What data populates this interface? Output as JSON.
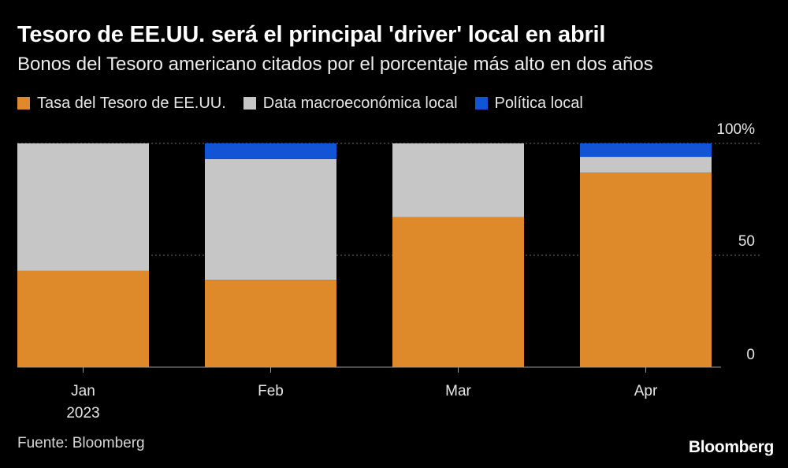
{
  "title": "Tesoro de EE.UU. será el principal 'driver' local en abril",
  "subtitle": "Bonos del Tesoro americano citados por el porcentaje más alto en dos años",
  "legend": [
    {
      "label": "Tasa del Tesoro de EE.UU.",
      "color": "#df8a2a"
    },
    {
      "label": "Data macroeconómica local",
      "color": "#c6c6c6"
    },
    {
      "label": "Política local",
      "color": "#1155d6"
    }
  ],
  "source": "Fuente: Bloomberg",
  "brand": "Bloomberg",
  "chart_data": {
    "type": "bar",
    "stacked": true,
    "categories": [
      "Jan",
      "Feb",
      "Mar",
      "Apr"
    ],
    "category_sublabels": [
      "2023",
      "",
      "",
      ""
    ],
    "series": [
      {
        "name": "Tasa del Tesoro de EE.UU.",
        "color": "#df8a2a",
        "values": [
          43,
          39,
          67,
          87
        ]
      },
      {
        "name": "Data macroeconómica local",
        "color": "#c6c6c6",
        "values": [
          57,
          54,
          33,
          7
        ]
      },
      {
        "name": "Política local",
        "color": "#1155d6",
        "values": [
          0,
          7,
          0,
          6
        ]
      }
    ],
    "ylim": [
      0,
      100
    ],
    "yticks": [
      {
        "value": 0,
        "label": "0"
      },
      {
        "value": 50,
        "label": "50"
      },
      {
        "value": 100,
        "label": "100%"
      }
    ],
    "gridlines": [
      50,
      100
    ],
    "xlabel": "",
    "ylabel": ""
  }
}
